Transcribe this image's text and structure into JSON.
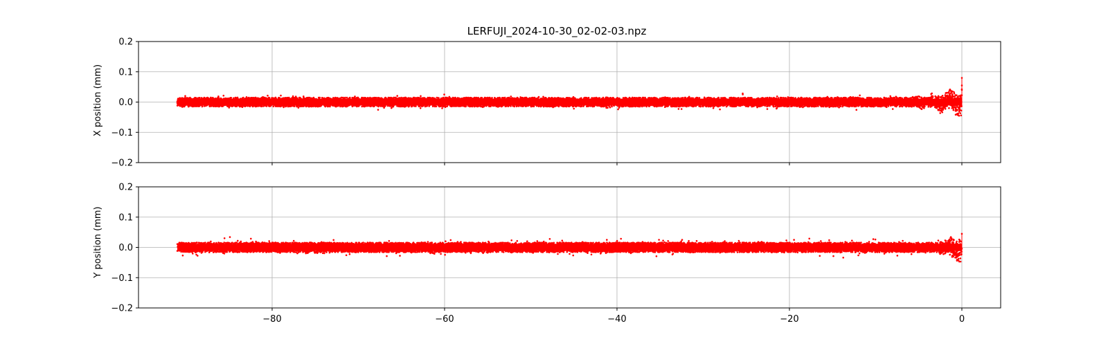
{
  "chart_data": [
    {
      "type": "scatter",
      "title": "LERFUJI_2024-10-30_02-02-03.npz",
      "xlabel": "",
      "ylabel": "X position (mm)",
      "xlim": [
        -95.5,
        4.5
      ],
      "ylim": [
        -0.2,
        0.2
      ],
      "xticks": [
        -80,
        -60,
        -40,
        -20,
        0
      ],
      "yticks": [
        -0.2,
        -0.1,
        0.0,
        0.1,
        0.2
      ],
      "xtick_labels_visible": false,
      "grid": true,
      "series": [
        {
          "color": "#ff0000",
          "x_range": [
            -91,
            0
          ],
          "band_center": 0.0,
          "band_halfwidth": 0.015,
          "outlier_extent": 0.028,
          "tail_start": -6,
          "tail_deviation": 0.035,
          "end_spikes": [
            0.08,
            0.055,
            0.04
          ]
        }
      ]
    },
    {
      "type": "scatter",
      "title": "",
      "xlabel": "",
      "ylabel": "Y position (mm)",
      "xlim": [
        -95.5,
        4.5
      ],
      "ylim": [
        -0.2,
        0.2
      ],
      "xticks": [
        -80,
        -60,
        -40,
        -20,
        0
      ],
      "yticks": [
        -0.2,
        -0.1,
        0.0,
        0.1,
        0.2
      ],
      "xtick_labels_visible": true,
      "grid": true,
      "series": [
        {
          "color": "#ff0000",
          "x_range": [
            -91,
            0
          ],
          "band_center": 0.0,
          "band_halfwidth": 0.016,
          "outlier_extent": 0.033,
          "tail_start": -3,
          "tail_deviation": 0.03,
          "end_spikes": [
            0.045
          ]
        }
      ]
    }
  ]
}
